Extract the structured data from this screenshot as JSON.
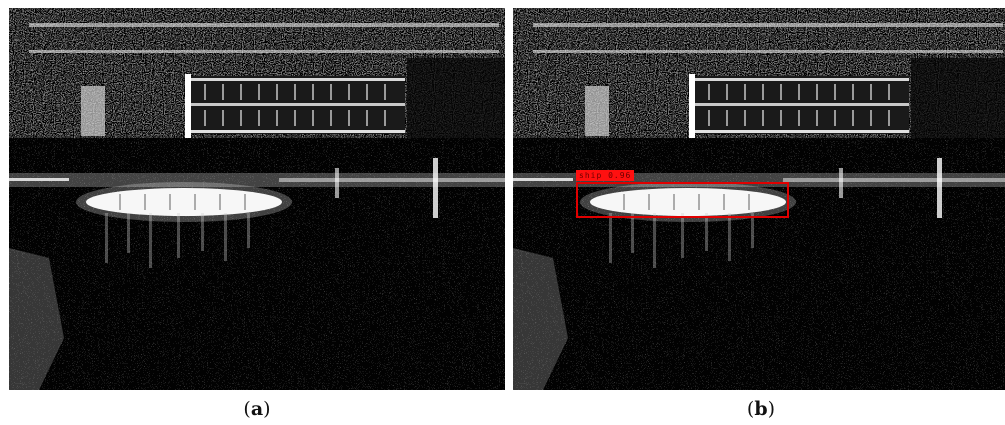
{
  "captions": {
    "a_open": "(",
    "a_letter": "a",
    "a_close": ")",
    "b_open": "(",
    "b_letter": "b",
    "b_close": ")"
  },
  "detection": {
    "label": "ship 0.96",
    "box_color": "#e00000",
    "label_bg": "#ff1010"
  },
  "image": {
    "type": "SAR grayscale speckle image",
    "background": "#050505"
  }
}
